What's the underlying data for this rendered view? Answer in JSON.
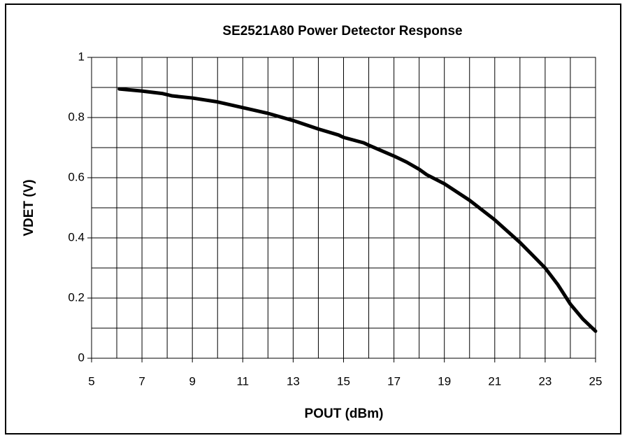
{
  "chart_data": {
    "type": "line",
    "title": "SE2521A80 Power Detector Response",
    "x_label": "POUT (dBm)",
    "y_label": "VDET (V)",
    "xlim": [
      5,
      25
    ],
    "ylim": [
      0,
      1
    ],
    "xticks": [
      5,
      7,
      9,
      11,
      13,
      15,
      17,
      19,
      21,
      23,
      25
    ],
    "yticks": [
      0,
      {
        "value": 0.2,
        "label": "0.2"
      },
      {
        "value": 0.4,
        "label": "0.4"
      },
      {
        "value": 0.6,
        "label": "0.6"
      },
      {
        "value": 0.8,
        "label": "0.8"
      },
      1
    ],
    "xgrid": [
      5,
      6,
      7,
      8,
      9,
      10,
      11,
      12,
      13,
      14,
      15,
      16,
      17,
      18,
      19,
      20,
      21,
      22,
      23,
      24,
      25
    ],
    "ygrid": [
      0,
      0.1,
      0.2,
      0.3,
      0.4,
      0.5,
      0.6,
      0.7,
      0.8,
      0.9,
      1
    ],
    "grid": true,
    "x": [
      6.1,
      7,
      7.8,
      8.2,
      9,
      10,
      11,
      12,
      13,
      14,
      14.8,
      15,
      15.8,
      16,
      17,
      17.5,
      18,
      18.3,
      19,
      20,
      21,
      22,
      23,
      23.5,
      24,
      24.5,
      25
    ],
    "series": [
      {
        "color": "#000000",
        "values": [
          0.895,
          0.888,
          0.88,
          0.872,
          0.865,
          0.852,
          0.833,
          0.814,
          0.79,
          0.762,
          0.742,
          0.734,
          0.716,
          0.708,
          0.672,
          0.652,
          0.628,
          0.61,
          0.58,
          0.525,
          0.46,
          0.385,
          0.3,
          0.245,
          0.18,
          0.13,
          0.09
        ]
      }
    ]
  }
}
